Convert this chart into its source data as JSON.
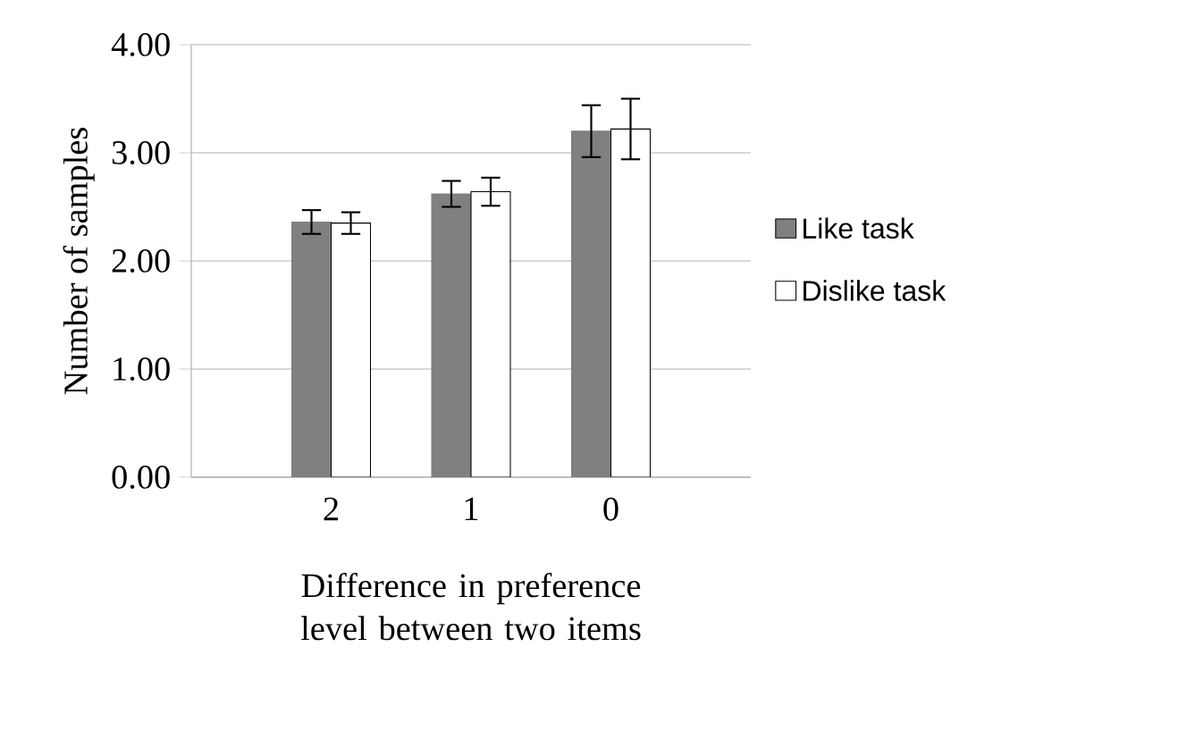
{
  "chart_data": {
    "type": "bar",
    "xlabel": "Difference in preference level between two items",
    "ylabel": "Number of samples",
    "categories": [
      "2",
      "1",
      "0"
    ],
    "series": [
      {
        "name": "Like task",
        "color": "#808080",
        "values": [
          2.36,
          2.62,
          3.2
        ],
        "errors": [
          0.11,
          0.12,
          0.24
        ]
      },
      {
        "name": "Dislike task",
        "color": "#ffffff",
        "values": [
          2.35,
          2.64,
          3.22
        ],
        "errors": [
          0.1,
          0.13,
          0.28
        ]
      }
    ],
    "ylim": [
      0,
      4
    ],
    "yticks": [
      {
        "value": 0,
        "label": "0.00"
      },
      {
        "value": 1,
        "label": "1.00"
      },
      {
        "value": 2,
        "label": "2.00"
      },
      {
        "value": 3,
        "label": "3.00"
      },
      {
        "value": 4,
        "label": "4.00"
      }
    ],
    "grid": "y",
    "legend": "right"
  }
}
